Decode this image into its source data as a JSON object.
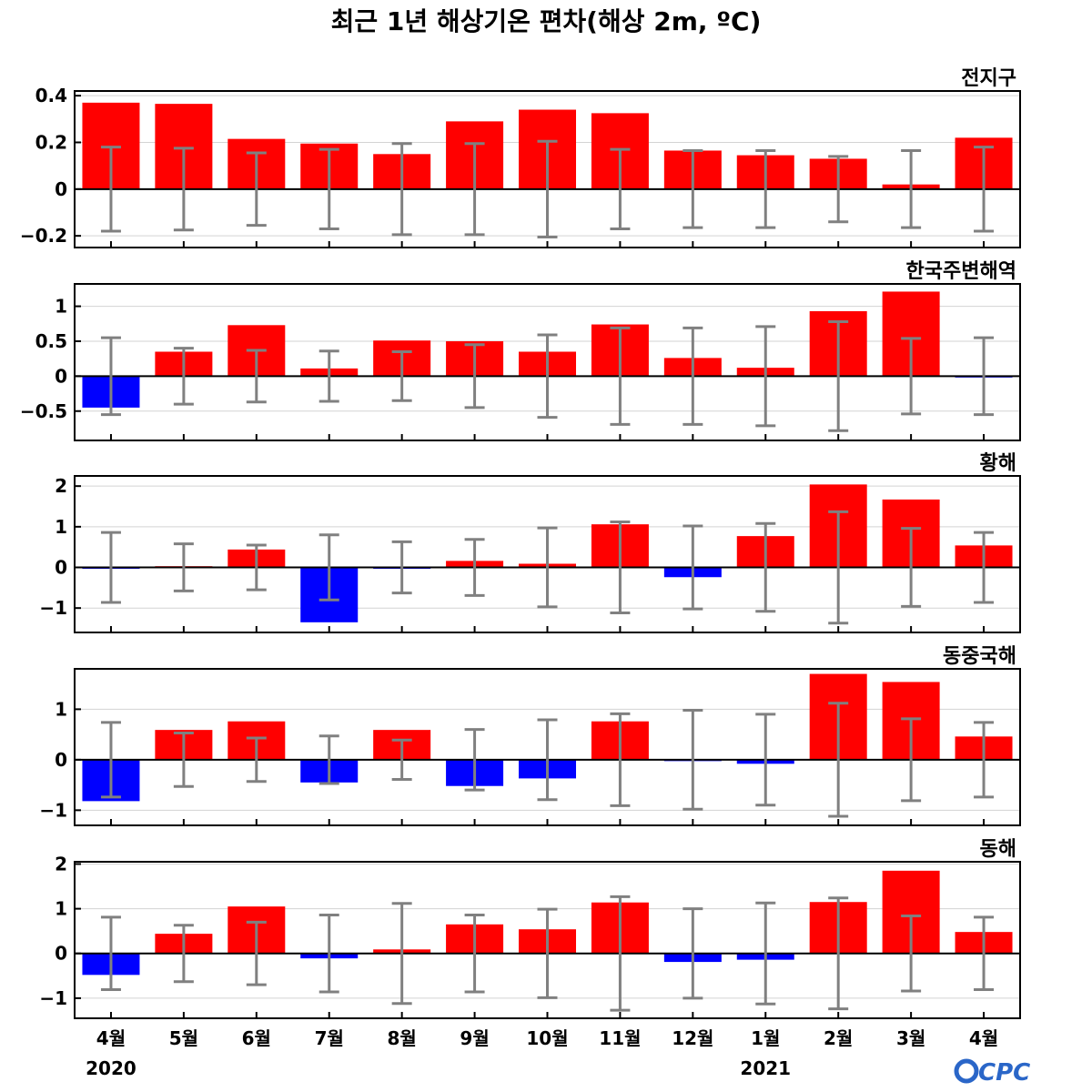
{
  "title": "최근 1년 해상기온 편차(해상 2m, ºC)",
  "logo": "CPC",
  "colors": {
    "positive": "#ff0000",
    "negative": "#0000ff",
    "errorbar": "#808080",
    "grid": "#d3d3d3",
    "zero": "#000000",
    "logo": "#2a66c8"
  },
  "chart_data": {
    "type": "bar",
    "categories": [
      "4월",
      "5월",
      "6월",
      "7월",
      "8월",
      "9월",
      "10월",
      "11월",
      "12월",
      "1월",
      "2월",
      "3월",
      "4월"
    ],
    "year_labels": [
      {
        "index": 0,
        "text": "2020"
      },
      {
        "index": 9,
        "text": "2021"
      }
    ],
    "panels": [
      {
        "region": "전지구",
        "ylim": [
          -0.25,
          0.42
        ],
        "yticks": [
          0.4,
          0.2,
          0,
          -0.2
        ],
        "ytick_labels": [
          "0.4",
          "0.2",
          "0",
          "−0.2"
        ],
        "values": [
          0.37,
          0.365,
          0.215,
          0.195,
          0.15,
          0.29,
          0.34,
          0.325,
          0.165,
          0.145,
          0.13,
          0.02,
          0.22
        ],
        "error": [
          0.18,
          0.175,
          0.155,
          0.17,
          0.195,
          0.195,
          0.205,
          0.17,
          0.165,
          0.165,
          0.14,
          0.165,
          0.18
        ]
      },
      {
        "region": "한국주변해역",
        "ylim": [
          -0.92,
          1.32
        ],
        "yticks": [
          1,
          0.5,
          0,
          -0.5
        ],
        "ytick_labels": [
          "1",
          "0.5",
          "0",
          "−0.5"
        ],
        "values": [
          -0.45,
          0.35,
          0.73,
          0.11,
          0.51,
          0.5,
          0.35,
          0.74,
          0.26,
          0.12,
          0.93,
          1.21,
          -0.01
        ],
        "error": [
          0.55,
          0.4,
          0.37,
          0.36,
          0.35,
          0.45,
          0.59,
          0.69,
          0.69,
          0.71,
          0.78,
          0.54,
          0.55
        ]
      },
      {
        "region": "황해",
        "ylim": [
          -1.6,
          2.25
        ],
        "yticks": [
          2,
          1,
          0,
          -1
        ],
        "ytick_labels": [
          "2",
          "1",
          "0",
          "−1"
        ],
        "values": [
          -0.02,
          0.03,
          0.44,
          -1.35,
          -0.02,
          0.16,
          0.09,
          1.06,
          -0.24,
          0.77,
          2.04,
          1.67,
          0.54
        ],
        "error": [
          0.86,
          0.58,
          0.55,
          0.8,
          0.63,
          0.69,
          0.97,
          1.12,
          1.02,
          1.08,
          1.37,
          0.96,
          0.86
        ]
      },
      {
        "region": "동중국해",
        "ylim": [
          -1.3,
          1.8
        ],
        "yticks": [
          1,
          0,
          -1
        ],
        "ytick_labels": [
          "1",
          "0",
          "−1"
        ],
        "values": [
          -0.82,
          0.59,
          0.76,
          -0.45,
          0.59,
          -0.52,
          -0.37,
          0.76,
          -0.02,
          -0.08,
          1.7,
          1.54,
          0.46
        ],
        "error": [
          0.74,
          0.53,
          0.43,
          0.47,
          0.39,
          0.6,
          0.79,
          0.91,
          0.98,
          0.9,
          1.12,
          0.81,
          0.74
        ]
      },
      {
        "region": "동해",
        "ylim": [
          -1.45,
          2.05
        ],
        "yticks": [
          2,
          1,
          0,
          -1
        ],
        "ytick_labels": [
          "2",
          "1",
          "0",
          "−1"
        ],
        "values": [
          -0.48,
          0.44,
          1.05,
          -0.11,
          0.09,
          0.65,
          0.54,
          1.14,
          -0.19,
          -0.14,
          1.15,
          1.85,
          0.48
        ],
        "error": [
          0.81,
          0.63,
          0.7,
          0.86,
          1.12,
          0.86,
          0.99,
          1.27,
          1.0,
          1.13,
          1.24,
          0.84,
          0.81
        ]
      }
    ]
  }
}
